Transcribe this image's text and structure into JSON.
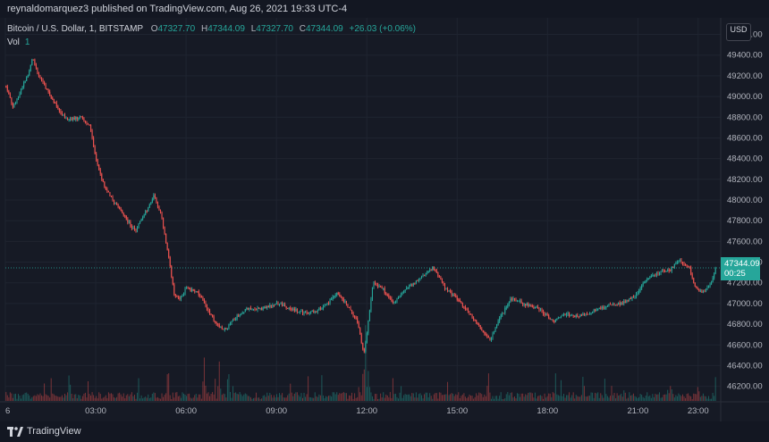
{
  "header": {
    "published": "reynaldomarquez3 published on TradingView.com, Aug 26, 2021 19:33 UTC-4"
  },
  "legend": {
    "symbol": "Bitcoin / U.S. Dollar, 1, BITSTAMP",
    "open_label": "O",
    "open": "47327.70",
    "high_label": "H",
    "high": "47344.09",
    "low_label": "L",
    "low": "47327.70",
    "close_label": "C",
    "close": "47344.09",
    "change": "+26.03 (+0.06%)",
    "volume_label": "Vol",
    "volume": "1"
  },
  "price_axis": {
    "currency": "USD",
    "last_price": "47344.09",
    "countdown": "00:25"
  },
  "branding": {
    "logo_text": "TradingView"
  },
  "colors": {
    "up": "#26a69a",
    "down": "#ef5350",
    "background": "#131722"
  },
  "chart_data": {
    "type": "candlestick",
    "symbol": "BTC/USD",
    "interval": "1",
    "exchange": "BITSTAMP",
    "xlabel": "",
    "ylabel": "",
    "y_ticks": [
      46200,
      46400,
      46600,
      46800,
      47000,
      47200,
      47400,
      47600,
      47800,
      48000,
      48200,
      48400,
      48600,
      48800,
      49000,
      49200,
      49400,
      49600
    ],
    "x_tick_labels": [
      "6",
      "03:00",
      "06:00",
      "09:00",
      "12:00",
      "15:00",
      "18:00",
      "21:00",
      "23:00"
    ],
    "x_tick_hours": [
      0,
      3,
      6,
      9,
      12,
      15,
      18,
      21,
      23
    ],
    "ylim": [
      46050,
      49760
    ],
    "xlim_hours": [
      0,
      23.75
    ],
    "last_close": 47344.09,
    "grid": true,
    "price_path": [
      {
        "t": 0.0,
        "p": 49100
      },
      {
        "t": 0.25,
        "p": 48900
      },
      {
        "t": 0.5,
        "p": 49050
      },
      {
        "t": 0.8,
        "p": 49250
      },
      {
        "t": 0.9,
        "p": 49380
      },
      {
        "t": 1.1,
        "p": 49200
      },
      {
        "t": 1.3,
        "p": 49100
      },
      {
        "t": 1.6,
        "p": 48950
      },
      {
        "t": 2.0,
        "p": 48780
      },
      {
        "t": 2.5,
        "p": 48800
      },
      {
        "t": 2.8,
        "p": 48730
      },
      {
        "t": 3.0,
        "p": 48400
      },
      {
        "t": 3.3,
        "p": 48120
      },
      {
        "t": 3.6,
        "p": 47980
      },
      {
        "t": 4.0,
        "p": 47820
      },
      {
        "t": 4.3,
        "p": 47700
      },
      {
        "t": 4.6,
        "p": 47850
      },
      {
        "t": 4.95,
        "p": 48050
      },
      {
        "t": 5.2,
        "p": 47820
      },
      {
        "t": 5.45,
        "p": 47400
      },
      {
        "t": 5.6,
        "p": 47100
      },
      {
        "t": 5.8,
        "p": 47050
      },
      {
        "t": 6.0,
        "p": 47150
      },
      {
        "t": 6.4,
        "p": 47100
      },
      {
        "t": 6.7,
        "p": 46950
      },
      {
        "t": 7.0,
        "p": 46800
      },
      {
        "t": 7.3,
        "p": 46750
      },
      {
        "t": 7.6,
        "p": 46850
      },
      {
        "t": 8.0,
        "p": 46950
      },
      {
        "t": 8.5,
        "p": 46950
      },
      {
        "t": 9.0,
        "p": 47000
      },
      {
        "t": 9.5,
        "p": 46950
      },
      {
        "t": 10.0,
        "p": 46900
      },
      {
        "t": 10.5,
        "p": 46950
      },
      {
        "t": 11.0,
        "p": 47100
      },
      {
        "t": 11.3,
        "p": 47000
      },
      {
        "t": 11.7,
        "p": 46820
      },
      {
        "t": 11.9,
        "p": 46500
      },
      {
        "t": 12.0,
        "p": 46700
      },
      {
        "t": 12.2,
        "p": 47200
      },
      {
        "t": 12.5,
        "p": 47150
      },
      {
        "t": 12.9,
        "p": 47000
      },
      {
        "t": 13.3,
        "p": 47150
      },
      {
        "t": 13.8,
        "p": 47250
      },
      {
        "t": 14.2,
        "p": 47350
      },
      {
        "t": 14.6,
        "p": 47150
      },
      {
        "t": 15.0,
        "p": 47050
      },
      {
        "t": 15.4,
        "p": 46900
      },
      {
        "t": 15.8,
        "p": 46750
      },
      {
        "t": 16.1,
        "p": 46650
      },
      {
        "t": 16.4,
        "p": 46850
      },
      {
        "t": 16.8,
        "p": 47050
      },
      {
        "t": 17.2,
        "p": 47000
      },
      {
        "t": 17.7,
        "p": 46950
      },
      {
        "t": 18.2,
        "p": 46820
      },
      {
        "t": 18.6,
        "p": 46900
      },
      {
        "t": 19.0,
        "p": 46880
      },
      {
        "t": 19.5,
        "p": 46920
      },
      {
        "t": 20.0,
        "p": 46980
      },
      {
        "t": 20.5,
        "p": 47000
      },
      {
        "t": 21.0,
        "p": 47100
      },
      {
        "t": 21.3,
        "p": 47250
      },
      {
        "t": 21.7,
        "p": 47300
      },
      {
        "t": 22.1,
        "p": 47330
      },
      {
        "t": 22.4,
        "p": 47420
      },
      {
        "t": 22.7,
        "p": 47350
      },
      {
        "t": 22.9,
        "p": 47150
      },
      {
        "t": 23.15,
        "p": 47100
      },
      {
        "t": 23.4,
        "p": 47180
      },
      {
        "t": 23.6,
        "p": 47344
      }
    ],
    "volume_spikes": [
      {
        "t": 5.4,
        "v": 0.55
      },
      {
        "t": 6.6,
        "v": 0.6
      },
      {
        "t": 7.1,
        "v": 0.55
      },
      {
        "t": 7.4,
        "v": 0.5
      },
      {
        "t": 11.95,
        "v": 1.0
      },
      {
        "t": 12.05,
        "v": 0.35
      },
      {
        "t": 16.0,
        "v": 0.2
      },
      {
        "t": 22.1,
        "v": 0.25
      },
      {
        "t": 23.0,
        "v": 0.2
      }
    ]
  }
}
